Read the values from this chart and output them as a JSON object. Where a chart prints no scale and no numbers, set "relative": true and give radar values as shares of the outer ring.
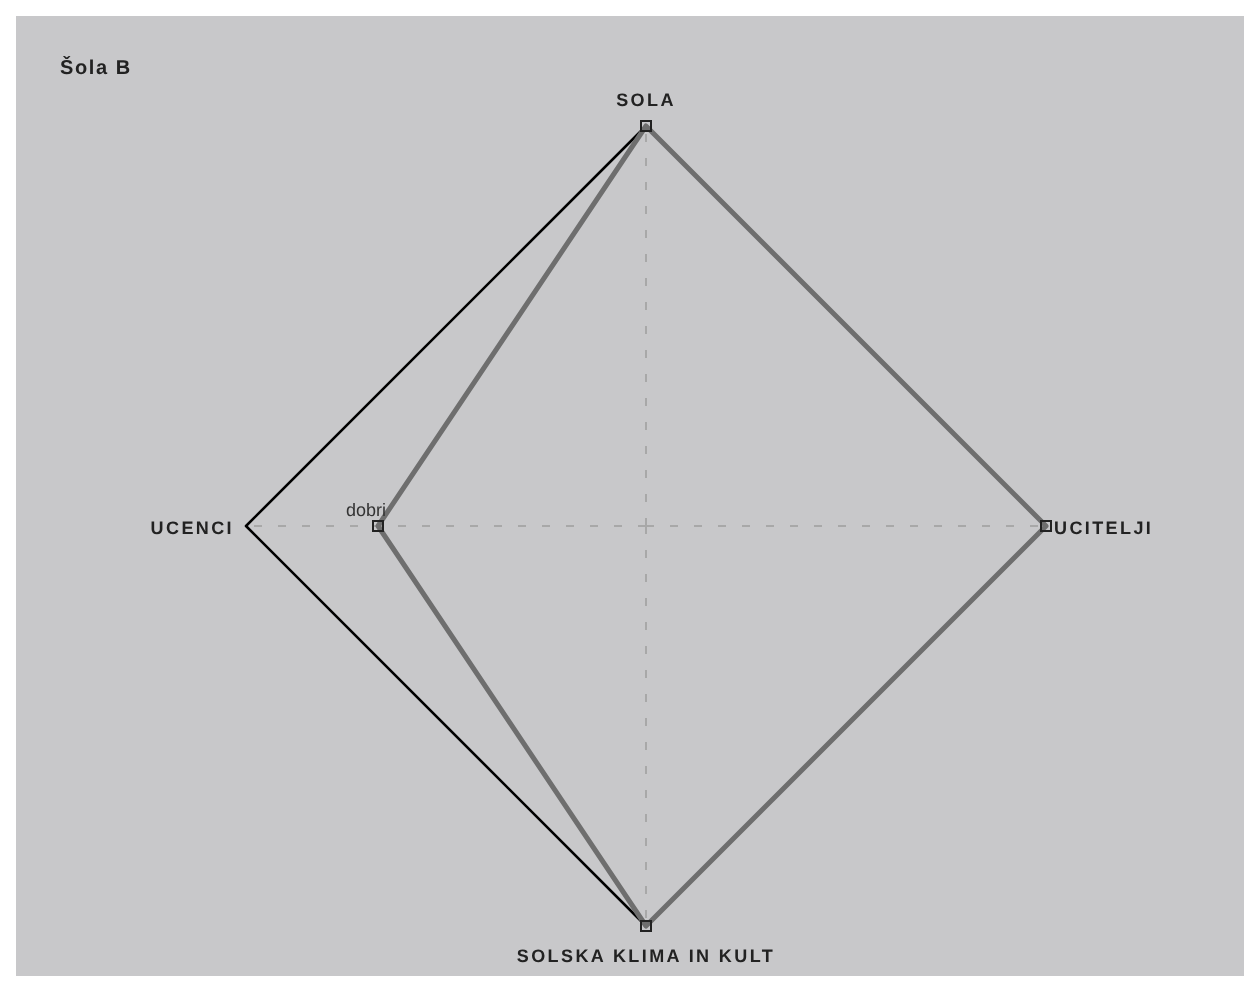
{
  "chart_data": {
    "type": "radar",
    "title": "Šola B",
    "relative": true,
    "grid": true,
    "categories": [
      "SOLA",
      "UCITELJI",
      "SOLSKA KLIMA IN KULT",
      "UCENCI"
    ],
    "series": [
      {
        "color": "#6e6e6e",
        "marker": "square",
        "values": [
          1,
          1,
          1,
          0.67
        ]
      }
    ],
    "annotations": [
      {
        "text": "dobri",
        "x": "UCENCI"
      }
    ]
  }
}
